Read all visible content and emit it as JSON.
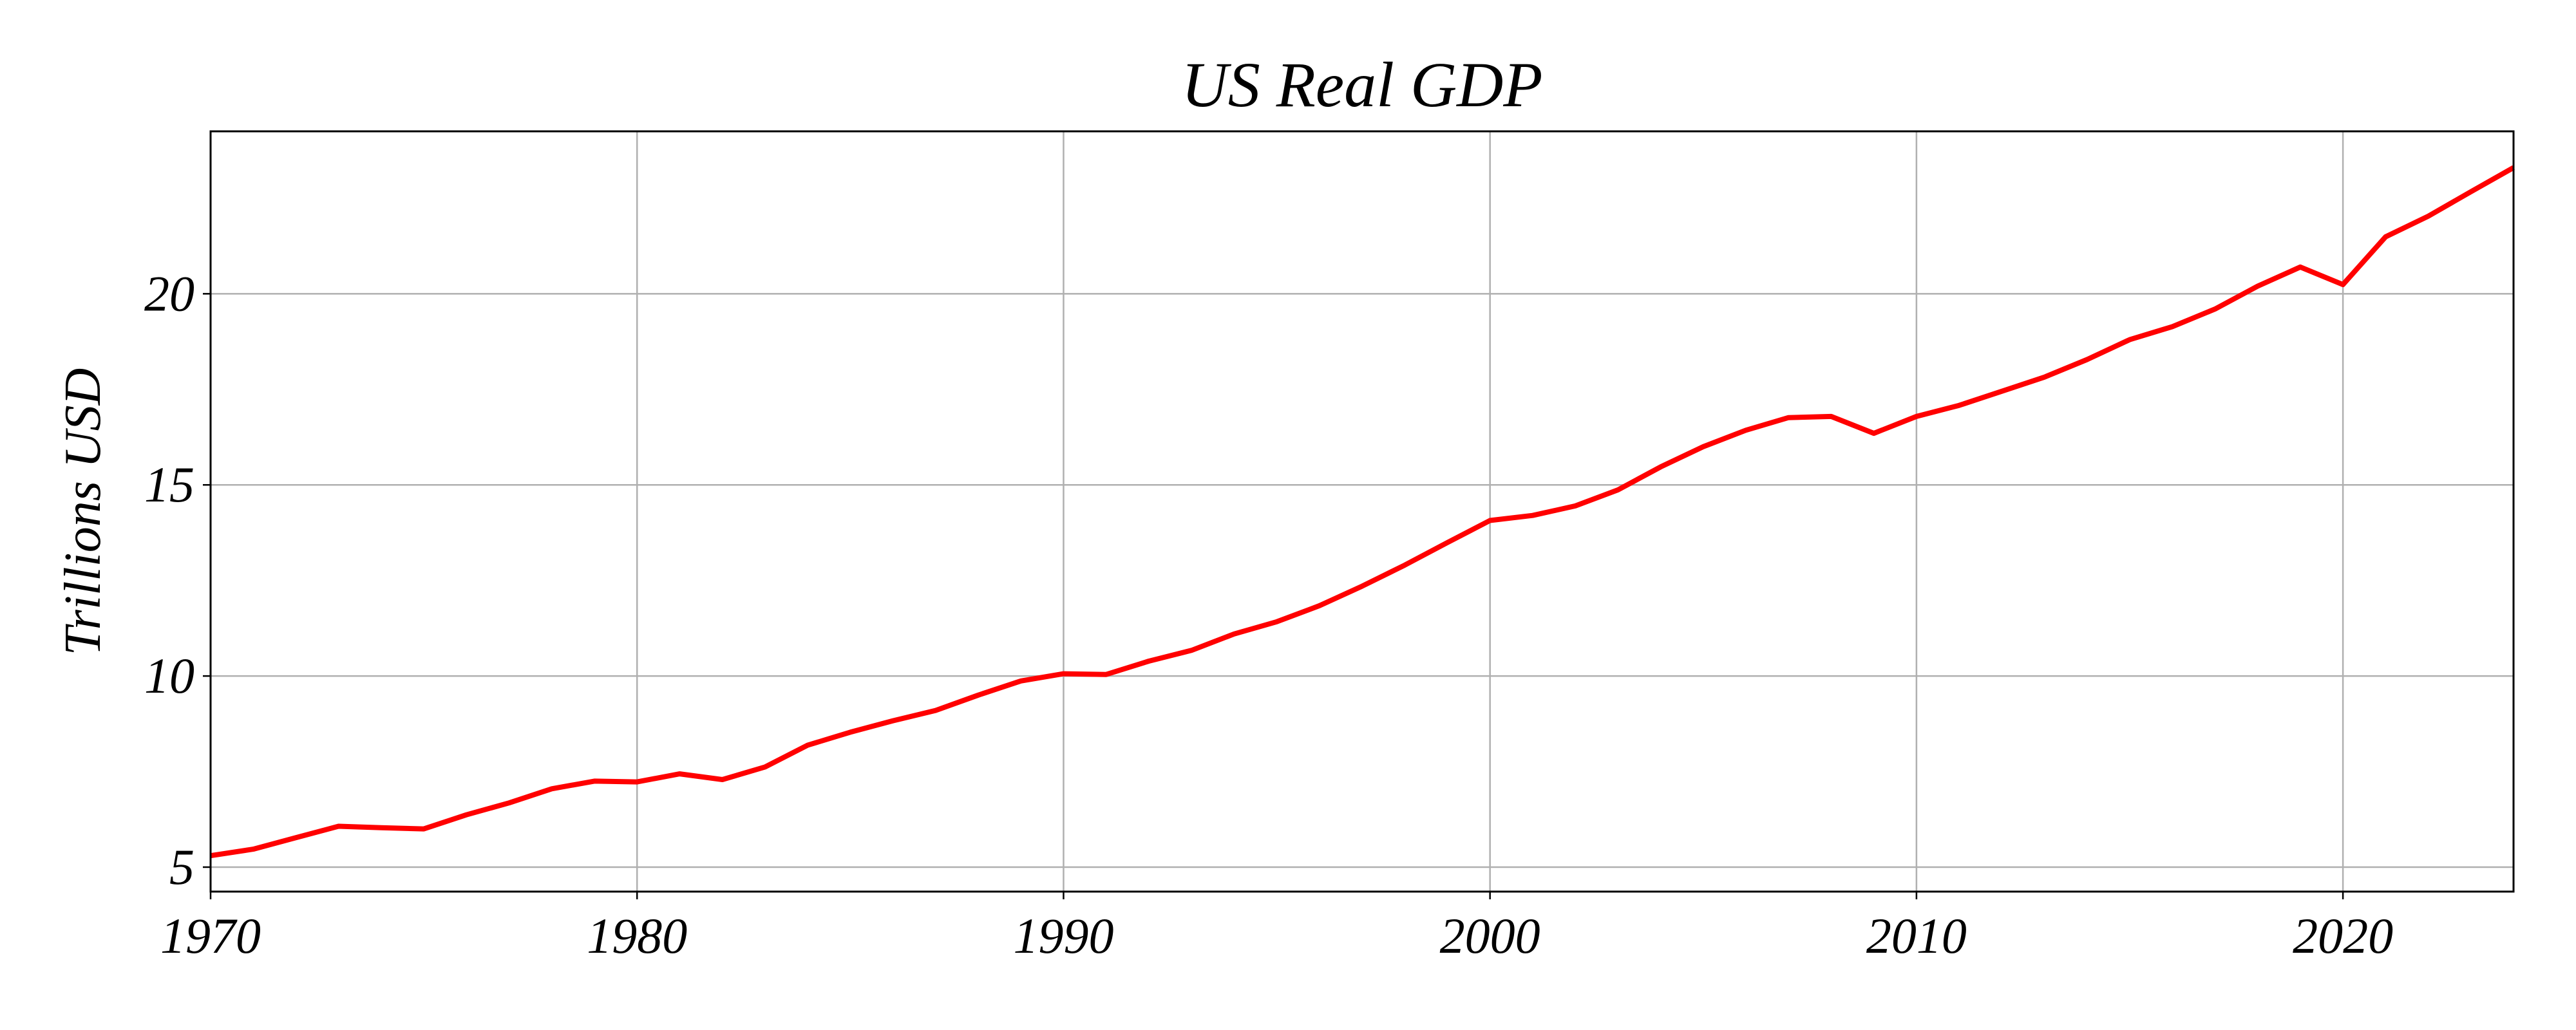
{
  "chart_data": {
    "type": "line",
    "title": "US Real GDP",
    "xlabel": "",
    "ylabel": "Trillions USD",
    "xlim": [
      1970,
      2024
    ],
    "ylim": [
      4.36,
      24.25
    ],
    "xticks": [
      1970,
      1980,
      1990,
      2000,
      2010,
      2020
    ],
    "yticks": [
      5,
      10,
      15,
      20
    ],
    "grid": true,
    "series": [
      {
        "name": "US Real GDP",
        "color": "#ff0000",
        "x": [
          1970,
          1971,
          1972,
          1973,
          1974,
          1975,
          1976,
          1977,
          1978,
          1979,
          1980,
          1981,
          1982,
          1983,
          1984,
          1985,
          1986,
          1987,
          1988,
          1989,
          1990,
          1991,
          1992,
          1993,
          1994,
          1995,
          1996,
          1997,
          1998,
          1999,
          2000,
          2001,
          2002,
          2003,
          2004,
          2005,
          2006,
          2007,
          2008,
          2009,
          2010,
          2011,
          2012,
          2013,
          2014,
          2015,
          2016,
          2017,
          2018,
          2019,
          2020,
          2021,
          2022,
          2023,
          2024
        ],
        "y": [
          5.3,
          5.47,
          5.77,
          6.07,
          6.03,
          6.0,
          6.37,
          6.68,
          7.05,
          7.25,
          7.23,
          7.44,
          7.29,
          7.62,
          8.19,
          8.53,
          8.83,
          9.1,
          9.5,
          9.87,
          10.06,
          10.04,
          10.39,
          10.67,
          11.1,
          11.42,
          11.84,
          12.35,
          12.9,
          13.49,
          14.07,
          14.2,
          14.45,
          14.87,
          15.47,
          16.0,
          16.43,
          16.76,
          16.79,
          16.35,
          16.79,
          17.08,
          17.45,
          17.82,
          18.28,
          18.8,
          19.14,
          19.6,
          20.2,
          20.7,
          20.24,
          21.49,
          22.03,
          22.67,
          23.3
        ]
      }
    ]
  }
}
